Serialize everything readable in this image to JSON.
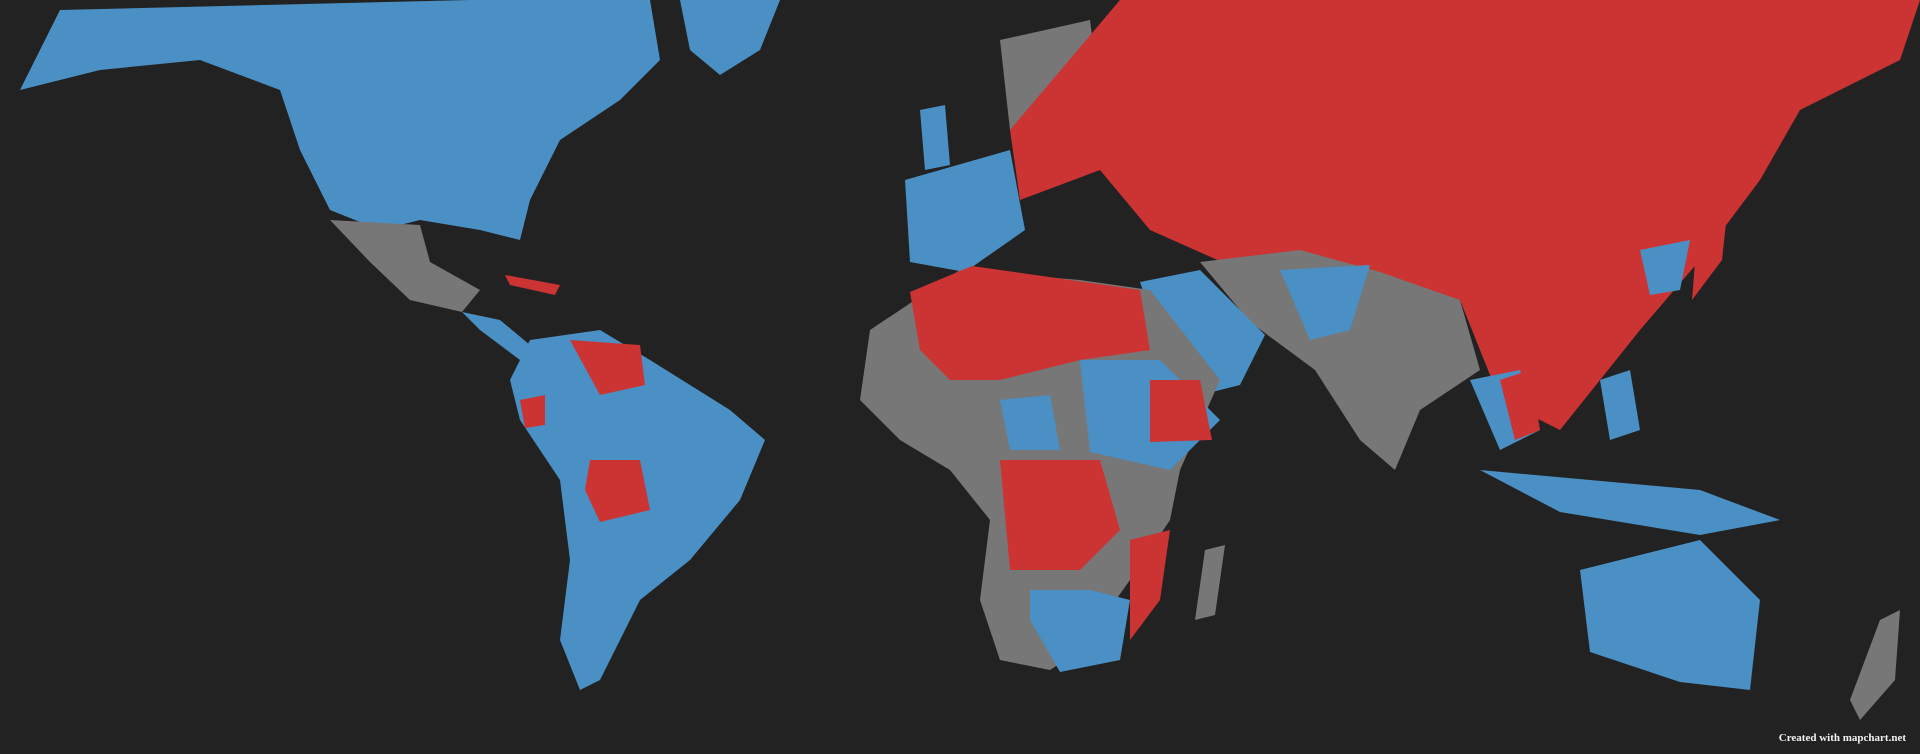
{
  "map": {
    "type": "world-choropleth",
    "colors": {
      "background": "#222222",
      "blue": "#4a90c4",
      "red": "#cc3333",
      "grey": "#777777"
    },
    "attribution": "Created with mapchart.net"
  }
}
